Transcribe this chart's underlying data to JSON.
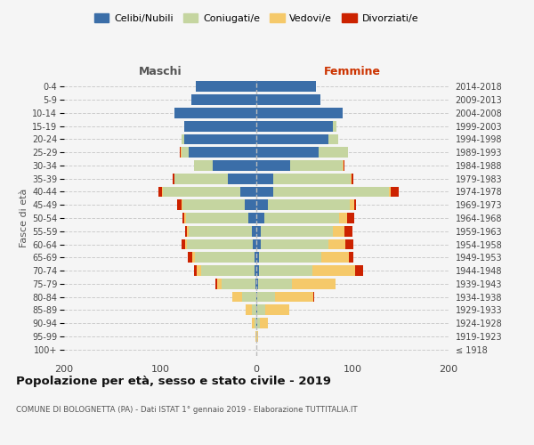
{
  "age_groups": [
    "100+",
    "95-99",
    "90-94",
    "85-89",
    "80-84",
    "75-79",
    "70-74",
    "65-69",
    "60-64",
    "55-59",
    "50-54",
    "45-49",
    "40-44",
    "35-39",
    "30-34",
    "25-29",
    "20-24",
    "15-19",
    "10-14",
    "5-9",
    "0-4"
  ],
  "birth_years": [
    "≤ 1918",
    "1919-1923",
    "1924-1928",
    "1929-1933",
    "1934-1938",
    "1939-1943",
    "1944-1948",
    "1949-1953",
    "1954-1958",
    "1959-1963",
    "1964-1968",
    "1969-1973",
    "1974-1978",
    "1979-1983",
    "1984-1988",
    "1989-1993",
    "1994-1998",
    "1999-2003",
    "2004-2008",
    "2009-2013",
    "2014-2018"
  ],
  "colors": {
    "celibi": "#3b6ea8",
    "coniugati": "#c5d5a0",
    "vedovi": "#f5c96a",
    "divorziati": "#cc2200"
  },
  "maschi": {
    "celibi": [
      0,
      0,
      0,
      0,
      0,
      1,
      2,
      2,
      4,
      5,
      8,
      12,
      17,
      30,
      45,
      70,
      75,
      75,
      85,
      68,
      63
    ],
    "coniugati": [
      0,
      0,
      2,
      5,
      15,
      35,
      55,
      62,
      68,
      65,
      65,
      65,
      80,
      55,
      20,
      8,
      3,
      0,
      0,
      0,
      0
    ],
    "vedovi": [
      0,
      1,
      3,
      6,
      10,
      5,
      5,
      3,
      2,
      2,
      2,
      1,
      1,
      0,
      0,
      1,
      0,
      0,
      0,
      0,
      0
    ],
    "divorziati": [
      0,
      0,
      0,
      0,
      0,
      2,
      3,
      4,
      4,
      2,
      2,
      4,
      4,
      2,
      0,
      1,
      0,
      0,
      0,
      0,
      0
    ]
  },
  "femmine": {
    "celibi": [
      0,
      0,
      1,
      1,
      1,
      2,
      3,
      3,
      5,
      5,
      8,
      12,
      18,
      18,
      35,
      65,
      75,
      80,
      90,
      67,
      62
    ],
    "coniugati": [
      0,
      1,
      3,
      8,
      18,
      35,
      55,
      65,
      70,
      75,
      78,
      85,
      120,
      80,
      55,
      30,
      10,
      3,
      0,
      0,
      0
    ],
    "vedovi": [
      0,
      1,
      8,
      25,
      40,
      45,
      45,
      28,
      18,
      12,
      8,
      5,
      2,
      1,
      1,
      0,
      0,
      0,
      0,
      0,
      0
    ],
    "divorziati": [
      0,
      0,
      0,
      0,
      1,
      0,
      8,
      5,
      8,
      8,
      8,
      2,
      8,
      2,
      1,
      0,
      0,
      0,
      0,
      0,
      0
    ]
  },
  "xlim": 200,
  "title": "Popolazione per età, sesso e stato civile - 2019",
  "subtitle": "COMUNE DI BOLOGNETTA (PA) - Dati ISTAT 1° gennaio 2019 - Elaborazione TUTTITALIA.IT",
  "ylabel_left": "Fasce di età",
  "legend_labels": [
    "Celibi/Nubili",
    "Coniugati/e",
    "Vedovi/e",
    "Divorziati/e"
  ],
  "maschi_label": "Maschi",
  "femmine_label": "Femmine",
  "background_color": "#f5f5f5"
}
